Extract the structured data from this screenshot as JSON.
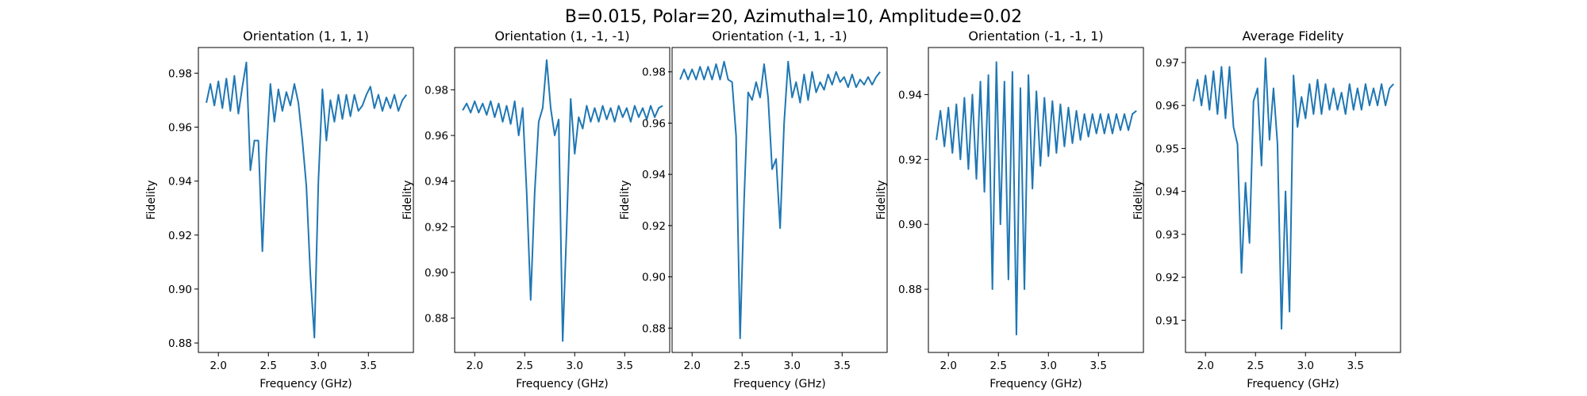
{
  "figure": {
    "title": "B=0.015, Polar=20, Azimuthal=10, Amplitude=0.02",
    "line_color": "#1f77b4"
  },
  "chart_data": [
    {
      "type": "line",
      "title": "Orientation (1, 1, 1)",
      "xlabel": "Frequency (GHz)",
      "ylabel": "Fidelity",
      "xlim": [
        1.8,
        3.95
      ],
      "ylim": [
        0.8765,
        0.9895
      ],
      "xticks": [
        2.0,
        2.5,
        3.0,
        3.5
      ],
      "yticks": [
        0.88,
        0.9,
        0.92,
        0.94,
        0.96,
        0.98
      ],
      "ytick_labels": [
        "0.88",
        "0.90",
        "0.92",
        "0.94",
        "0.96",
        "0.98"
      ],
      "x": [
        1.88,
        1.92,
        1.96,
        2.0,
        2.04,
        2.08,
        2.12,
        2.16,
        2.2,
        2.24,
        2.28,
        2.32,
        2.36,
        2.4,
        2.44,
        2.48,
        2.52,
        2.56,
        2.6,
        2.64,
        2.68,
        2.72,
        2.76,
        2.8,
        2.84,
        2.88,
        2.92,
        2.96,
        3.0,
        3.04,
        3.08,
        3.12,
        3.16,
        3.2,
        3.24,
        3.28,
        3.32,
        3.36,
        3.4,
        3.44,
        3.48,
        3.52,
        3.56,
        3.6,
        3.64,
        3.68,
        3.72,
        3.76,
        3.8,
        3.84,
        3.88
      ],
      "y": [
        0.969,
        0.976,
        0.968,
        0.977,
        0.967,
        0.978,
        0.966,
        0.979,
        0.965,
        0.975,
        0.984,
        0.944,
        0.955,
        0.955,
        0.914,
        0.95,
        0.976,
        0.962,
        0.974,
        0.966,
        0.973,
        0.968,
        0.976,
        0.969,
        0.955,
        0.938,
        0.905,
        0.882,
        0.94,
        0.974,
        0.955,
        0.97,
        0.962,
        0.972,
        0.963,
        0.972,
        0.964,
        0.972,
        0.966,
        0.968,
        0.972,
        0.975,
        0.967,
        0.972,
        0.966,
        0.971,
        0.967,
        0.972,
        0.966,
        0.97,
        0.972
      ]
    },
    {
      "type": "line",
      "title": "Orientation (1, -1, -1)",
      "xlabel": "Frequency (GHz)",
      "ylabel": "Fidelity",
      "xlim": [
        1.8,
        3.95
      ],
      "ylim": [
        0.865,
        0.9985
      ],
      "xticks": [
        2.0,
        2.5,
        3.0,
        3.5
      ],
      "yticks": [
        0.88,
        0.9,
        0.92,
        0.94,
        0.96,
        0.98
      ],
      "ytick_labels": [
        "0.88",
        "0.90",
        "0.92",
        "0.94",
        "0.96",
        "0.98"
      ],
      "x": [
        1.88,
        1.92,
        1.96,
        2.0,
        2.04,
        2.08,
        2.12,
        2.16,
        2.2,
        2.24,
        2.28,
        2.32,
        2.36,
        2.4,
        2.44,
        2.48,
        2.52,
        2.56,
        2.6,
        2.64,
        2.68,
        2.72,
        2.76,
        2.8,
        2.84,
        2.88,
        2.92,
        2.96,
        3.0,
        3.04,
        3.08,
        3.12,
        3.16,
        3.2,
        3.24,
        3.28,
        3.32,
        3.36,
        3.4,
        3.44,
        3.48,
        3.52,
        3.56,
        3.6,
        3.64,
        3.68,
        3.72,
        3.76,
        3.8,
        3.84,
        3.88
      ],
      "y": [
        0.971,
        0.974,
        0.97,
        0.975,
        0.97,
        0.974,
        0.969,
        0.975,
        0.968,
        0.974,
        0.966,
        0.973,
        0.965,
        0.975,
        0.96,
        0.972,
        0.935,
        0.888,
        0.935,
        0.966,
        0.972,
        0.993,
        0.972,
        0.96,
        0.967,
        0.87,
        0.92,
        0.976,
        0.952,
        0.968,
        0.963,
        0.973,
        0.966,
        0.972,
        0.966,
        0.973,
        0.967,
        0.972,
        0.966,
        0.973,
        0.968,
        0.972,
        0.966,
        0.973,
        0.968,
        0.972,
        0.967,
        0.973,
        0.968,
        0.972,
        0.973
      ]
    },
    {
      "type": "line",
      "title": "Orientation (-1, 1, -1)",
      "xlabel": "Frequency (GHz)",
      "ylabel": "Fidelity",
      "xlim": [
        1.8,
        3.95
      ],
      "ylim": [
        0.8705,
        0.9895
      ],
      "xticks": [
        2.0,
        2.5,
        3.0,
        3.5
      ],
      "yticks": [
        0.88,
        0.9,
        0.92,
        0.94,
        0.96,
        0.98
      ],
      "ytick_labels": [
        "0.88",
        "0.90",
        "0.92",
        "0.94",
        "0.96",
        "0.98"
      ],
      "x": [
        1.88,
        1.92,
        1.96,
        2.0,
        2.04,
        2.08,
        2.12,
        2.16,
        2.2,
        2.24,
        2.28,
        2.32,
        2.36,
        2.4,
        2.44,
        2.48,
        2.52,
        2.56,
        2.6,
        2.64,
        2.68,
        2.72,
        2.76,
        2.8,
        2.84,
        2.88,
        2.92,
        2.96,
        3.0,
        3.04,
        3.08,
        3.12,
        3.16,
        3.2,
        3.24,
        3.28,
        3.32,
        3.36,
        3.4,
        3.44,
        3.48,
        3.52,
        3.56,
        3.6,
        3.64,
        3.68,
        3.72,
        3.76,
        3.8,
        3.84,
        3.88
      ],
      "y": [
        0.977,
        0.981,
        0.977,
        0.981,
        0.977,
        0.982,
        0.977,
        0.982,
        0.977,
        0.983,
        0.977,
        0.984,
        0.977,
        0.976,
        0.955,
        0.876,
        0.93,
        0.972,
        0.969,
        0.976,
        0.97,
        0.983,
        0.97,
        0.942,
        0.946,
        0.919,
        0.96,
        0.984,
        0.97,
        0.976,
        0.968,
        0.979,
        0.969,
        0.98,
        0.972,
        0.976,
        0.973,
        0.979,
        0.975,
        0.98,
        0.976,
        0.978,
        0.974,
        0.979,
        0.974,
        0.977,
        0.975,
        0.978,
        0.975,
        0.978,
        0.98
      ]
    },
    {
      "type": "line",
      "title": "Orientation (-1, -1, 1)",
      "xlabel": "Frequency (GHz)",
      "ylabel": "Fidelity",
      "xlim": [
        1.8,
        3.95
      ],
      "ylim": [
        0.8605,
        0.9545
      ],
      "xticks": [
        2.0,
        2.5,
        3.0,
        3.5
      ],
      "yticks": [
        0.88,
        0.9,
        0.92,
        0.94
      ],
      "ytick_labels": [
        "0.88",
        "0.90",
        "0.92",
        "0.94"
      ],
      "x": [
        1.88,
        1.92,
        1.96,
        2.0,
        2.04,
        2.08,
        2.12,
        2.16,
        2.2,
        2.24,
        2.28,
        2.32,
        2.36,
        2.4,
        2.44,
        2.48,
        2.52,
        2.56,
        2.6,
        2.64,
        2.68,
        2.72,
        2.76,
        2.8,
        2.84,
        2.88,
        2.92,
        2.96,
        3.0,
        3.04,
        3.08,
        3.12,
        3.16,
        3.2,
        3.24,
        3.28,
        3.32,
        3.36,
        3.4,
        3.44,
        3.48,
        3.52,
        3.56,
        3.6,
        3.64,
        3.68,
        3.72,
        3.76,
        3.8,
        3.84,
        3.88
      ],
      "y": [
        0.926,
        0.935,
        0.924,
        0.936,
        0.922,
        0.937,
        0.92,
        0.939,
        0.917,
        0.94,
        0.914,
        0.944,
        0.91,
        0.946,
        0.88,
        0.95,
        0.9,
        0.944,
        0.883,
        0.947,
        0.866,
        0.942,
        0.88,
        0.946,
        0.911,
        0.941,
        0.918,
        0.939,
        0.921,
        0.938,
        0.922,
        0.937,
        0.924,
        0.936,
        0.925,
        0.935,
        0.926,
        0.934,
        0.927,
        0.934,
        0.928,
        0.934,
        0.928,
        0.934,
        0.928,
        0.934,
        0.929,
        0.934,
        0.929,
        0.934,
        0.935
      ]
    },
    {
      "type": "line",
      "title": "Average Fidelity",
      "xlabel": "Frequency (GHz)",
      "ylabel": "Fidelity",
      "xlim": [
        1.8,
        3.95
      ],
      "ylim": [
        0.9025,
        0.9735
      ],
      "xticks": [
        2.0,
        2.5,
        3.0,
        3.5
      ],
      "yticks": [
        0.91,
        0.92,
        0.93,
        0.94,
        0.95,
        0.96,
        0.97
      ],
      "ytick_labels": [
        "0.91",
        "0.92",
        "0.93",
        "0.94",
        "0.95",
        "0.96",
        "0.97"
      ],
      "x": [
        1.88,
        1.92,
        1.96,
        2.0,
        2.04,
        2.08,
        2.12,
        2.16,
        2.2,
        2.24,
        2.28,
        2.32,
        2.36,
        2.4,
        2.44,
        2.48,
        2.52,
        2.56,
        2.6,
        2.64,
        2.68,
        2.72,
        2.76,
        2.8,
        2.84,
        2.88,
        2.92,
        2.96,
        3.0,
        3.04,
        3.08,
        3.12,
        3.16,
        3.2,
        3.24,
        3.28,
        3.32,
        3.36,
        3.4,
        3.44,
        3.48,
        3.52,
        3.56,
        3.6,
        3.64,
        3.68,
        3.72,
        3.76,
        3.8,
        3.84,
        3.88
      ],
      "y": [
        0.961,
        0.966,
        0.96,
        0.967,
        0.959,
        0.968,
        0.958,
        0.969,
        0.957,
        0.969,
        0.955,
        0.951,
        0.921,
        0.942,
        0.928,
        0.961,
        0.964,
        0.946,
        0.971,
        0.952,
        0.964,
        0.951,
        0.908,
        0.94,
        0.912,
        0.967,
        0.955,
        0.962,
        0.957,
        0.965,
        0.958,
        0.966,
        0.958,
        0.965,
        0.959,
        0.964,
        0.959,
        0.963,
        0.958,
        0.965,
        0.959,
        0.964,
        0.959,
        0.965,
        0.96,
        0.964,
        0.96,
        0.965,
        0.96,
        0.964,
        0.965
      ]
    }
  ]
}
